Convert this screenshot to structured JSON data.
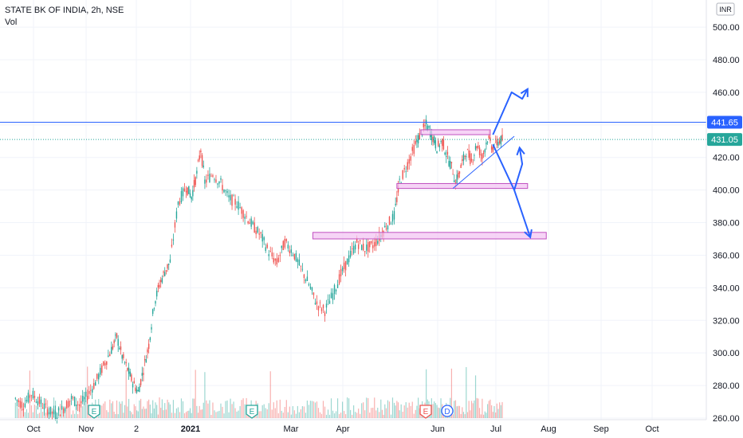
{
  "legend": {
    "symbol_line": "STATE BK OF INDIA, 2h, NSE",
    "volume_label": "Vol"
  },
  "chart_data": {
    "type": "candlestick",
    "currency_label": "INR",
    "y_ticks": [
      260,
      280,
      300,
      320,
      340,
      360,
      380,
      400,
      420,
      440,
      460,
      480,
      500
    ],
    "y_tick_labels": [
      "260.00",
      "280.00",
      "300.00",
      "320.00",
      "340.00",
      "360.00",
      "380.00",
      "400.00",
      "420.00",
      "440.00",
      "460.00",
      "480.00",
      "500.00"
    ],
    "ylim": [
      260,
      505
    ],
    "x_ticks": [
      {
        "label": "Oct",
        "bold": false
      },
      {
        "label": "Nov",
        "bold": false
      },
      {
        "label": "2",
        "bold": false
      },
      {
        "label": "2021",
        "bold": true
      },
      {
        "label": "Mar",
        "bold": false
      },
      {
        "label": "Apr",
        "bold": false
      },
      {
        "label": "Jun",
        "bold": false
      },
      {
        "label": "Jul",
        "bold": false
      },
      {
        "label": "Aug",
        "bold": false
      },
      {
        "label": "Sep",
        "bold": false
      },
      {
        "label": "Oct",
        "bold": false
      }
    ],
    "price_levels": [
      {
        "value": 441.65,
        "label": "441.65",
        "color": "#2962ff",
        "style": "solid"
      },
      {
        "value": 431.05,
        "label": "431.05",
        "color": "#26a69a",
        "style": "dotted"
      }
    ],
    "event_markers": [
      {
        "letter": "E",
        "color": "#26a69a"
      },
      {
        "letter": "E",
        "color": "#26a69a"
      },
      {
        "letter": "E",
        "color": "#ef5350"
      },
      {
        "letter": "D",
        "color": "#2962ff"
      }
    ],
    "colors": {
      "up": "#26a69a",
      "down": "#ef5350",
      "drawing": "#2962ff",
      "zone_fill": "#f3c6f3",
      "zone_border": "#c050c0"
    },
    "price_path": [
      [
        2,
        272
      ],
      [
        8,
        268
      ],
      [
        14,
        275
      ],
      [
        20,
        270
      ],
      [
        26,
        265
      ],
      [
        32,
        262
      ],
      [
        38,
        266
      ],
      [
        44,
        272
      ],
      [
        50,
        268
      ],
      [
        56,
        274
      ],
      [
        62,
        282
      ],
      [
        68,
        292
      ],
      [
        74,
        302
      ],
      [
        78,
        310
      ],
      [
        82,
        298
      ],
      [
        86,
        290
      ],
      [
        90,
        282
      ],
      [
        94,
        276
      ],
      [
        98,
        290
      ],
      [
        102,
        305
      ],
      [
        106,
        330
      ],
      [
        110,
        342
      ],
      [
        114,
        350
      ],
      [
        118,
        356
      ],
      [
        124,
        392
      ],
      [
        130,
        402
      ],
      [
        134,
        396
      ],
      [
        138,
        410
      ],
      [
        141,
        425
      ],
      [
        144,
        405
      ],
      [
        150,
        410
      ],
      [
        156,
        404
      ],
      [
        162,
        395
      ],
      [
        168,
        392
      ],
      [
        174,
        385
      ],
      [
        180,
        378
      ],
      [
        186,
        372
      ],
      [
        192,
        362
      ],
      [
        198,
        355
      ],
      [
        204,
        368
      ],
      [
        210,
        362
      ],
      [
        216,
        352
      ],
      [
        222,
        342
      ],
      [
        228,
        330
      ],
      [
        234,
        326
      ],
      [
        240,
        336
      ],
      [
        246,
        348
      ],
      [
        252,
        358
      ],
      [
        258,
        368
      ],
      [
        264,
        364
      ],
      [
        270,
        366
      ],
      [
        276,
        372
      ],
      [
        280,
        378
      ],
      [
        286,
        384
      ],
      [
        290,
        405
      ],
      [
        296,
        416
      ],
      [
        302,
        428
      ],
      [
        306,
        435
      ],
      [
        310,
        440
      ],
      [
        314,
        434
      ],
      [
        318,
        426
      ],
      [
        322,
        430
      ],
      [
        326,
        420
      ],
      [
        330,
        412
      ],
      [
        332,
        404
      ],
      [
        336,
        414
      ],
      [
        340,
        424
      ],
      [
        344,
        418
      ],
      [
        348,
        428
      ],
      [
        352,
        420
      ],
      [
        356,
        432
      ],
      [
        360,
        426
      ],
      [
        364,
        430
      ],
      [
        368,
        431
      ]
    ],
    "drawings": {
      "zones": [
        {
          "from": 306,
          "to": 358,
          "low": 434,
          "high": 437
        },
        {
          "from": 288,
          "to": 386,
          "low": 401,
          "high": 404
        },
        {
          "from": 225,
          "to": 400,
          "low": 370,
          "high": 374
        }
      ],
      "triangle_line": [
        [
          330,
          401
        ],
        [
          376,
          433
        ]
      ],
      "arrows": [
        [
          [
            360,
            434
          ],
          [
            374,
            460
          ],
          [
            382,
            456
          ],
          [
            386,
            462
          ]
        ],
        [
          [
            360,
            428
          ],
          [
            376,
            400
          ],
          [
            382,
            416
          ],
          [
            380,
            426
          ]
        ],
        [
          [
            376,
            400
          ],
          [
            388,
            371
          ]
        ]
      ]
    }
  }
}
